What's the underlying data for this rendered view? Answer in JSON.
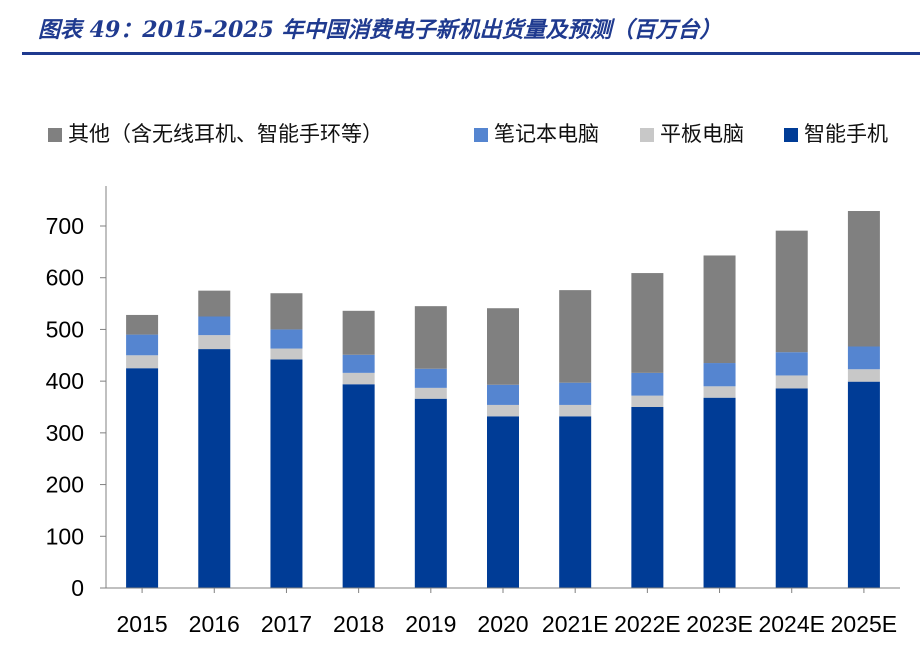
{
  "title": "图表 49：2015-2025 年中国消费电子新机出货量及预测（百万台）",
  "chart_data": {
    "type": "bar",
    "stacked": true,
    "title": "图表 49：2015-2025 年中国消费电子新机出货量及预测（百万台）",
    "xlabel": "",
    "ylabel": "",
    "ylim": [
      0,
      700
    ],
    "yticks": [
      0,
      100,
      200,
      300,
      400,
      500,
      600,
      700
    ],
    "grid": false,
    "legend_position": "top",
    "categories": [
      "2015",
      "2016",
      "2017",
      "2018",
      "2019",
      "2020",
      "2021E",
      "2022E",
      "2023E",
      "2024E",
      "2025E"
    ],
    "series": [
      {
        "name": "智能手机",
        "color": "#003c96",
        "values": [
          425,
          462,
          442,
          394,
          366,
          332,
          332,
          350,
          368,
          386,
          399
        ]
      },
      {
        "name": "平板电脑",
        "color": "#c8c8c8",
        "values": [
          25,
          27,
          21,
          22,
          21,
          22,
          22,
          22,
          22,
          25,
          24
        ]
      },
      {
        "name": "笔记本电脑",
        "color": "#5585d0",
        "values": [
          40,
          36,
          37,
          35,
          37,
          39,
          43,
          44,
          45,
          45,
          44
        ]
      },
      {
        "name": "其他（含无线耳机、智能手环等）",
        "color": "#808080",
        "values": [
          38,
          50,
          70,
          85,
          121,
          148,
          179,
          193,
          208,
          235,
          262
        ]
      }
    ],
    "legend_order": [
      "其他（含无线耳机、智能手环等）",
      "笔记本电脑",
      "平板电脑",
      "智能手机"
    ]
  }
}
